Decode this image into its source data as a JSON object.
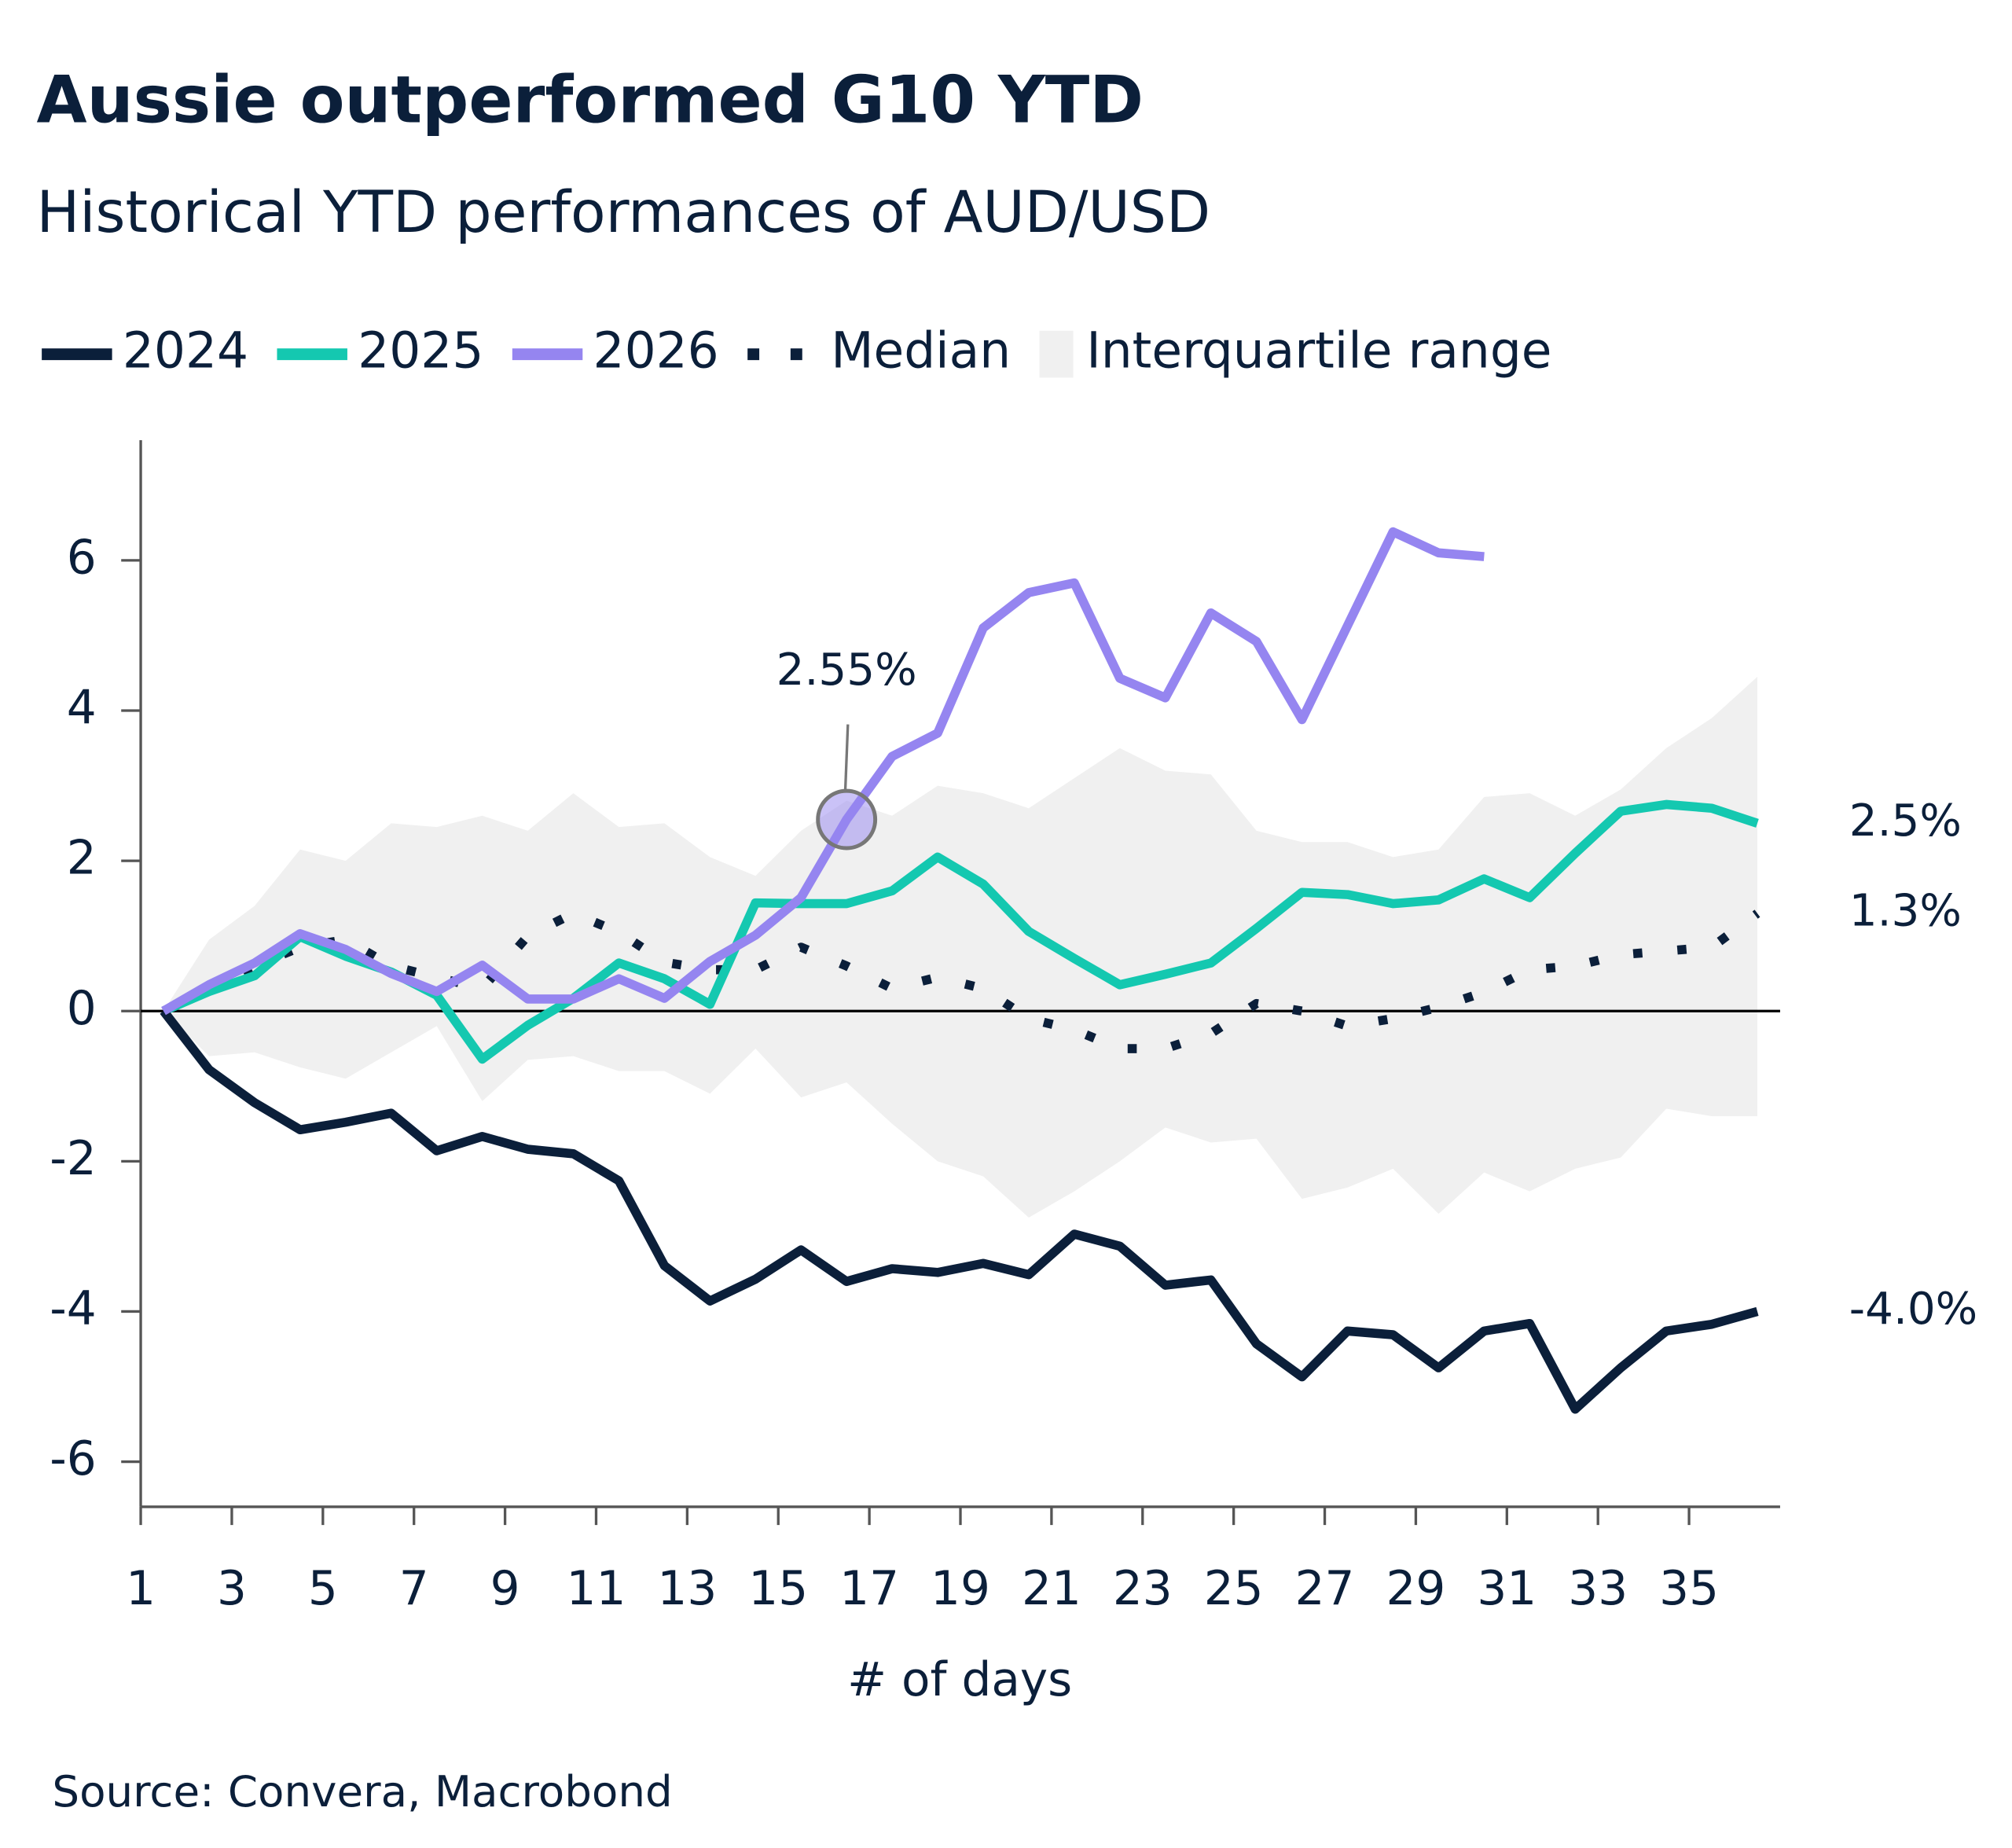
{
  "chart_data": {
    "type": "line",
    "title": "Aussie outperformed G10 YTD",
    "subtitle": "Historical YTD performances of AUD/USD",
    "x_label": "# of days",
    "source": "Source: Convera, Macrobond",
    "x": [
      1.5,
      2.5,
      3.5,
      4.5,
      5.5,
      6.5,
      7.5,
      8.5,
      9.5,
      10.5,
      11.5,
      12.5,
      13.5,
      14.5,
      15.5,
      16.5,
      17.5,
      18.5,
      19.5,
      20.5,
      21.5,
      22.5,
      23.5,
      24.5,
      25.5,
      26.5,
      27.5,
      28.5,
      29.5,
      30.5,
      31.5,
      32.5,
      33.5,
      34.5,
      35.5,
      36.5
    ],
    "xlim": [
      1,
      37
    ],
    "xticks": [
      1,
      3,
      5,
      7,
      9,
      11,
      13,
      15,
      17,
      19,
      21,
      23,
      25,
      27,
      29,
      31,
      33,
      35
    ],
    "ylim": [
      -6.6,
      7.6
    ],
    "yticks": [
      -6,
      -4,
      -2,
      0,
      2,
      4,
      6
    ],
    "grid": false,
    "series": [
      {
        "name": "2024",
        "color": "#0b1f3a",
        "style": "solid",
        "values": [
          0,
          -0.78,
          -1.22,
          -1.58,
          -1.48,
          -1.36,
          -1.86,
          -1.67,
          -1.84,
          -1.9,
          -2.26,
          -3.39,
          -3.86,
          -3.57,
          -3.18,
          -3.6,
          -3.43,
          -3.48,
          -3.36,
          -3.51,
          -2.97,
          -3.13,
          -3.65,
          -3.58,
          -4.43,
          -4.87,
          -4.26,
          -4.31,
          -4.75,
          -4.26,
          -4.16,
          -5.3,
          -4.75,
          -4.26,
          -4.17,
          -4.0
        ],
        "value_labels": [
          null,
          null,
          null,
          null,
          null,
          null,
          null,
          null,
          null,
          null,
          null,
          null,
          null,
          null,
          null,
          null,
          null,
          null,
          null,
          null,
          null,
          null,
          null,
          null,
          null,
          null,
          null,
          null,
          null,
          null,
          null,
          null,
          null,
          null,
          null,
          "-4.0%"
        ]
      },
      {
        "name": "2025",
        "color": "#14c8b0",
        "style": "solid",
        "values": [
          0,
          0.26,
          0.47,
          0.99,
          0.73,
          0.52,
          0.21,
          -0.64,
          -0.19,
          0.17,
          0.64,
          0.43,
          0.09,
          1.44,
          1.43,
          1.43,
          1.6,
          2.05,
          1.69,
          1.06,
          0.7,
          0.35,
          0.49,
          0.64,
          1.1,
          1.58,
          1.55,
          1.43,
          1.48,
          1.76,
          1.51,
          2.1,
          2.66,
          2.75,
          2.7,
          2.5
        ],
        "value_labels": [
          null,
          null,
          null,
          null,
          null,
          null,
          null,
          null,
          null,
          null,
          null,
          null,
          null,
          null,
          null,
          null,
          null,
          null,
          null,
          null,
          null,
          null,
          null,
          null,
          null,
          null,
          null,
          null,
          null,
          null,
          null,
          null,
          null,
          null,
          null,
          "2.5%"
        ]
      },
      {
        "name": "2026",
        "color": "#9585f0",
        "style": "solid",
        "values": [
          0,
          0.35,
          0.64,
          1.03,
          0.82,
          0.5,
          0.26,
          0.61,
          0.16,
          0.16,
          0.43,
          0.17,
          0.66,
          1.01,
          1.51,
          2.55,
          3.39,
          3.7,
          5.1,
          5.57,
          5.7,
          4.43,
          4.17,
          5.3,
          4.92,
          3.88,
          5.13,
          6.38,
          6.1,
          6.05,
          null,
          null,
          null,
          null,
          null,
          null
        ],
        "value_labels": [
          null,
          null,
          null,
          null,
          null,
          null,
          null,
          null,
          null,
          null,
          null,
          null,
          null,
          null,
          null,
          "2.55%",
          null,
          null,
          null,
          null,
          null,
          null,
          null,
          null,
          null,
          null,
          null,
          null,
          null,
          null,
          null,
          null,
          null,
          null,
          null,
          null
        ]
      },
      {
        "name": "Median",
        "color": "#0b1f3a",
        "style": "dotted",
        "values": [
          0,
          0.3,
          0.6,
          0.85,
          0.95,
          0.6,
          0.45,
          0.3,
          1.0,
          1.3,
          1.05,
          0.65,
          0.55,
          0.55,
          0.85,
          0.6,
          0.3,
          0.45,
          0.3,
          -0.1,
          -0.25,
          -0.5,
          -0.5,
          -0.3,
          0.1,
          0.0,
          -0.2,
          -0.1,
          0.05,
          0.25,
          0.55,
          0.6,
          0.75,
          0.8,
          0.85,
          1.3
        ],
        "value_labels": [
          null,
          null,
          null,
          null,
          null,
          null,
          null,
          null,
          null,
          null,
          null,
          null,
          null,
          null,
          null,
          null,
          null,
          null,
          null,
          null,
          null,
          null,
          null,
          null,
          null,
          null,
          null,
          null,
          null,
          null,
          null,
          null,
          null,
          null,
          null,
          "1.3%"
        ]
      },
      {
        "name": "Interquartile range",
        "color": "#f0f0f0",
        "style": "band",
        "upper": [
          0,
          0.95,
          1.4,
          2.15,
          2.0,
          2.5,
          2.45,
          2.6,
          2.4,
          2.9,
          2.45,
          2.5,
          2.05,
          1.8,
          2.4,
          2.8,
          2.6,
          3.0,
          2.9,
          2.7,
          3.1,
          3.5,
          3.2,
          3.15,
          2.4,
          2.25,
          2.25,
          2.05,
          2.15,
          2.85,
          2.9,
          2.6,
          2.95,
          3.5,
          3.9,
          4.45
        ],
        "lower": [
          0,
          -0.6,
          -0.55,
          -0.75,
          -0.9,
          -0.55,
          -0.2,
          -1.2,
          -0.65,
          -0.6,
          -0.8,
          -0.8,
          -1.1,
          -0.5,
          -1.15,
          -0.95,
          -1.5,
          -2.0,
          -2.2,
          -2.75,
          -2.4,
          -2.0,
          -1.55,
          -1.75,
          -1.7,
          -2.5,
          -2.35,
          -2.1,
          -2.7,
          -2.15,
          -2.4,
          -2.1,
          -1.95,
          -1.3,
          -1.4,
          -1.4
        ]
      }
    ]
  }
}
